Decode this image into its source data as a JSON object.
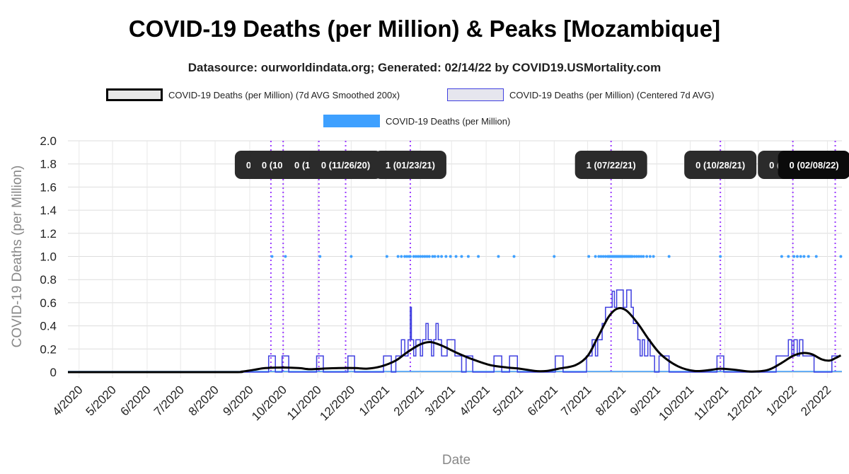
{
  "title": "COVID-19 Deaths (per Million) & Peaks [Mozambique]",
  "subtitle": "Datasource: ourworldindata.org; Generated: 02/14/22 by COVID19.USMortality.com",
  "legend": [
    {
      "label": "COVID-19 Deaths (per Million) (7d AVG Smoothed 200x)",
      "color": "#000000",
      "fill": "#e6e6e6"
    },
    {
      "label": "COVID-19 Deaths (per Million) (Centered 7d AVG)",
      "color": "#4040e0",
      "fill": "#e6e6ee"
    },
    {
      "label": "COVID-19 Deaths (per Million)",
      "color": "#3ea0ff",
      "fill": "#3ea0ff"
    }
  ],
  "chart_data": {
    "type": "line",
    "xlabel": "Date",
    "ylabel": "COVID-19 Deaths (per Million)",
    "ylim": [
      0,
      2.0
    ],
    "yticks": [
      "0",
      "0.2",
      "0.4",
      "0.6",
      "0.8",
      "1.0",
      "1.2",
      "1.4",
      "1.6",
      "1.8",
      "2.0"
    ],
    "xlim": [
      "2020-03-22",
      "2022-02-14"
    ],
    "xticks": [
      {
        "date": "2020-04-01",
        "label": "4/2020"
      },
      {
        "date": "2020-05-01",
        "label": "5/2020"
      },
      {
        "date": "2020-06-01",
        "label": "6/2020"
      },
      {
        "date": "2020-07-01",
        "label": "7/2020"
      },
      {
        "date": "2020-08-01",
        "label": "8/2020"
      },
      {
        "date": "2020-09-01",
        "label": "9/2020"
      },
      {
        "date": "2020-10-01",
        "label": "10/2020"
      },
      {
        "date": "2020-11-01",
        "label": "11/2020"
      },
      {
        "date": "2020-12-01",
        "label": "12/2020"
      },
      {
        "date": "2021-01-01",
        "label": "1/2021"
      },
      {
        "date": "2021-02-01",
        "label": "2/2021"
      },
      {
        "date": "2021-03-01",
        "label": "3/2021"
      },
      {
        "date": "2021-04-01",
        "label": "4/2021"
      },
      {
        "date": "2021-05-01",
        "label": "5/2021"
      },
      {
        "date": "2021-06-01",
        "label": "6/2021"
      },
      {
        "date": "2021-07-01",
        "label": "7/2021"
      },
      {
        "date": "2021-08-01",
        "label": "8/2021"
      },
      {
        "date": "2021-09-01",
        "label": "9/2021"
      },
      {
        "date": "2021-10-01",
        "label": "10/2021"
      },
      {
        "date": "2021-11-01",
        "label": "11/2021"
      },
      {
        "date": "2021-12-01",
        "label": "12/2021"
      },
      {
        "date": "2022-01-01",
        "label": "1/2022"
      },
      {
        "date": "2022-02-01",
        "label": "2/2022"
      }
    ],
    "series": [
      {
        "name": "COVID-19 Deaths (per Million) (7d AVG Smoothed 200x)",
        "points": [
          [
            "2020-03-22",
            0
          ],
          [
            "2020-08-10",
            0
          ],
          [
            "2020-08-25",
            0.005
          ],
          [
            "2020-09-05",
            0.02
          ],
          [
            "2020-09-15",
            0.035
          ],
          [
            "2020-10-01",
            0.04
          ],
          [
            "2020-10-15",
            0.035
          ],
          [
            "2020-10-25",
            0.025
          ],
          [
            "2020-11-05",
            0.03
          ],
          [
            "2020-11-20",
            0.035
          ],
          [
            "2020-12-05",
            0.035
          ],
          [
            "2020-12-15",
            0.03
          ],
          [
            "2020-12-28",
            0.05
          ],
          [
            "2021-01-10",
            0.1
          ],
          [
            "2021-01-20",
            0.17
          ],
          [
            "2021-02-01",
            0.24
          ],
          [
            "2021-02-10",
            0.26
          ],
          [
            "2021-02-20",
            0.23
          ],
          [
            "2021-03-05",
            0.17
          ],
          [
            "2021-03-20",
            0.11
          ],
          [
            "2021-04-05",
            0.06
          ],
          [
            "2021-04-20",
            0.04
          ],
          [
            "2021-05-01",
            0.03
          ],
          [
            "2021-05-15",
            0.01
          ],
          [
            "2021-05-25",
            0.01
          ],
          [
            "2021-06-05",
            0.03
          ],
          [
            "2021-06-20",
            0.06
          ],
          [
            "2021-07-01",
            0.14
          ],
          [
            "2021-07-10",
            0.3
          ],
          [
            "2021-07-20",
            0.48
          ],
          [
            "2021-07-28",
            0.55
          ],
          [
            "2021-08-05",
            0.53
          ],
          [
            "2021-08-15",
            0.42
          ],
          [
            "2021-08-25",
            0.28
          ],
          [
            "2021-09-05",
            0.15
          ],
          [
            "2021-09-20",
            0.05
          ],
          [
            "2021-10-05",
            0.01
          ],
          [
            "2021-10-20",
            0.02
          ],
          [
            "2021-10-28",
            0.03
          ],
          [
            "2021-11-10",
            0.02
          ],
          [
            "2021-11-25",
            0.005
          ],
          [
            "2021-12-10",
            0.02
          ],
          [
            "2021-12-22",
            0.08
          ],
          [
            "2022-01-01",
            0.14
          ],
          [
            "2022-01-10",
            0.165
          ],
          [
            "2022-01-18",
            0.155
          ],
          [
            "2022-01-27",
            0.11
          ],
          [
            "2022-02-03",
            0.1
          ],
          [
            "2022-02-08",
            0.12
          ],
          [
            "2022-02-13",
            0.145
          ]
        ]
      },
      {
        "name": "COVID-19 Deaths (per Million) (Centered 7d AVG)",
        "points": [
          [
            "2020-03-22",
            0
          ],
          [
            "2020-09-18",
            0
          ],
          [
            "2020-09-18",
            0.14
          ],
          [
            "2020-09-24",
            0.14
          ],
          [
            "2020-09-24",
            0
          ],
          [
            "2020-09-30",
            0
          ],
          [
            "2020-09-30",
            0.14
          ],
          [
            "2020-10-06",
            0.14
          ],
          [
            "2020-10-06",
            0
          ],
          [
            "2020-10-31",
            0
          ],
          [
            "2020-10-31",
            0.14
          ],
          [
            "2020-11-06",
            0.14
          ],
          [
            "2020-11-06",
            0
          ],
          [
            "2020-11-28",
            0
          ],
          [
            "2020-11-28",
            0.14
          ],
          [
            "2020-12-04",
            0.14
          ],
          [
            "2020-12-04",
            0
          ],
          [
            "2020-12-30",
            0
          ],
          [
            "2020-12-30",
            0.14
          ],
          [
            "2021-01-06",
            0.14
          ],
          [
            "2021-01-06",
            0
          ],
          [
            "2021-01-10",
            0
          ],
          [
            "2021-01-10",
            0.14
          ],
          [
            "2021-01-15",
            0.14
          ],
          [
            "2021-01-15",
            0.28
          ],
          [
            "2021-01-18",
            0.28
          ],
          [
            "2021-01-18",
            0.14
          ],
          [
            "2021-01-21",
            0.14
          ],
          [
            "2021-01-21",
            0.28
          ],
          [
            "2021-01-23",
            0.28
          ],
          [
            "2021-01-23",
            0.56
          ],
          [
            "2021-01-24",
            0.56
          ],
          [
            "2021-01-24",
            0.28
          ],
          [
            "2021-01-26",
            0.28
          ],
          [
            "2021-01-26",
            0.14
          ],
          [
            "2021-01-28",
            0.14
          ],
          [
            "2021-01-28",
            0.28
          ],
          [
            "2021-02-01",
            0.28
          ],
          [
            "2021-02-01",
            0.14
          ],
          [
            "2021-02-03",
            0.14
          ],
          [
            "2021-02-03",
            0.28
          ],
          [
            "2021-02-06",
            0.28
          ],
          [
            "2021-02-06",
            0.42
          ],
          [
            "2021-02-08",
            0.42
          ],
          [
            "2021-02-08",
            0.28
          ],
          [
            "2021-02-11",
            0.28
          ],
          [
            "2021-02-11",
            0.14
          ],
          [
            "2021-02-13",
            0.14
          ],
          [
            "2021-02-13",
            0.28
          ],
          [
            "2021-02-15",
            0.28
          ],
          [
            "2021-02-15",
            0.42
          ],
          [
            "2021-02-17",
            0.42
          ],
          [
            "2021-02-17",
            0.28
          ],
          [
            "2021-02-20",
            0.28
          ],
          [
            "2021-02-20",
            0.14
          ],
          [
            "2021-02-25",
            0.14
          ],
          [
            "2021-02-25",
            0.28
          ],
          [
            "2021-03-04",
            0.28
          ],
          [
            "2021-03-04",
            0.14
          ],
          [
            "2021-03-10",
            0.14
          ],
          [
            "2021-03-10",
            0
          ],
          [
            "2021-03-14",
            0
          ],
          [
            "2021-03-14",
            0.14
          ],
          [
            "2021-03-20",
            0.14
          ],
          [
            "2021-03-20",
            0
          ],
          [
            "2021-04-08",
            0
          ],
          [
            "2021-04-08",
            0.14
          ],
          [
            "2021-04-15",
            0.14
          ],
          [
            "2021-04-15",
            0
          ],
          [
            "2021-04-22",
            0
          ],
          [
            "2021-04-22",
            0.14
          ],
          [
            "2021-04-29",
            0.14
          ],
          [
            "2021-04-29",
            0
          ],
          [
            "2021-06-02",
            0
          ],
          [
            "2021-06-02",
            0.14
          ],
          [
            "2021-06-09",
            0.14
          ],
          [
            "2021-06-09",
            0
          ],
          [
            "2021-06-30",
            0
          ],
          [
            "2021-06-30",
            0.14
          ],
          [
            "2021-07-05",
            0.14
          ],
          [
            "2021-07-05",
            0.28
          ],
          [
            "2021-07-08",
            0.28
          ],
          [
            "2021-07-08",
            0.14
          ],
          [
            "2021-07-10",
            0.14
          ],
          [
            "2021-07-10",
            0.28
          ],
          [
            "2021-07-14",
            0.28
          ],
          [
            "2021-07-14",
            0.42
          ],
          [
            "2021-07-17",
            0.42
          ],
          [
            "2021-07-17",
            0.56
          ],
          [
            "2021-07-23",
            0.56
          ],
          [
            "2021-07-23",
            0.7
          ],
          [
            "2021-07-25",
            0.7
          ],
          [
            "2021-07-25",
            0.56
          ],
          [
            "2021-07-27",
            0.56
          ],
          [
            "2021-07-27",
            0.71
          ],
          [
            "2021-08-02",
            0.71
          ],
          [
            "2021-08-02",
            0.56
          ],
          [
            "2021-08-05",
            0.56
          ],
          [
            "2021-08-05",
            0.71
          ],
          [
            "2021-08-09",
            0.71
          ],
          [
            "2021-08-09",
            0.56
          ],
          [
            "2021-08-11",
            0.56
          ],
          [
            "2021-08-11",
            0.42
          ],
          [
            "2021-08-15",
            0.42
          ],
          [
            "2021-08-15",
            0.28
          ],
          [
            "2021-08-17",
            0.28
          ],
          [
            "2021-08-17",
            0.14
          ],
          [
            "2021-08-19",
            0.14
          ],
          [
            "2021-08-19",
            0.28
          ],
          [
            "2021-08-21",
            0.28
          ],
          [
            "2021-08-21",
            0.14
          ],
          [
            "2021-08-24",
            0.14
          ],
          [
            "2021-08-24",
            0.28
          ],
          [
            "2021-08-26",
            0.28
          ],
          [
            "2021-08-26",
            0.14
          ],
          [
            "2021-08-30",
            0.14
          ],
          [
            "2021-08-30",
            0
          ],
          [
            "2021-09-03",
            0
          ],
          [
            "2021-09-03",
            0.14
          ],
          [
            "2021-09-12",
            0.14
          ],
          [
            "2021-09-12",
            0
          ],
          [
            "2021-10-25",
            0
          ],
          [
            "2021-10-25",
            0.14
          ],
          [
            "2021-10-31",
            0.14
          ],
          [
            "2021-10-31",
            0
          ],
          [
            "2021-12-17",
            0
          ],
          [
            "2021-12-17",
            0.14
          ],
          [
            "2021-12-28",
            0.14
          ],
          [
            "2021-12-28",
            0.28
          ],
          [
            "2021-12-31",
            0.28
          ],
          [
            "2021-12-31",
            0.14
          ],
          [
            "2022-01-02",
            0.14
          ],
          [
            "2022-01-02",
            0.28
          ],
          [
            "2022-01-05",
            0.28
          ],
          [
            "2022-01-05",
            0.14
          ],
          [
            "2022-01-07",
            0.14
          ],
          [
            "2022-01-07",
            0.28
          ],
          [
            "2022-01-10",
            0.28
          ],
          [
            "2022-01-10",
            0.14
          ],
          [
            "2022-01-20",
            0.14
          ],
          [
            "2022-01-20",
            0
          ],
          [
            "2022-02-05",
            0
          ],
          [
            "2022-02-05",
            0.14
          ],
          [
            "2022-02-13",
            0.14
          ]
        ]
      },
      {
        "name": "COVID-19 Deaths (per Million)",
        "value": 1.0,
        "dates": [
          "2020-09-21",
          "2020-10-03",
          "2020-11-03",
          "2020-12-01",
          "2021-01-02",
          "2021-01-12",
          "2021-01-15",
          "2021-01-18",
          "2021-01-20",
          "2021-01-22",
          "2021-01-23",
          "2021-01-26",
          "2021-01-28",
          "2021-01-30",
          "2021-02-01",
          "2021-02-03",
          "2021-02-05",
          "2021-02-07",
          "2021-02-09",
          "2021-02-12",
          "2021-02-14",
          "2021-02-17",
          "2021-02-20",
          "2021-02-24",
          "2021-02-28",
          "2021-03-05",
          "2021-03-10",
          "2021-03-16",
          "2021-03-25",
          "2021-04-12",
          "2021-04-26",
          "2021-06-01",
          "2021-07-02",
          "2021-07-08",
          "2021-07-11",
          "2021-07-13",
          "2021-07-15",
          "2021-07-17",
          "2021-07-19",
          "2021-07-20",
          "2021-07-21",
          "2021-07-22",
          "2021-07-23",
          "2021-07-24",
          "2021-07-25",
          "2021-07-26",
          "2021-07-27",
          "2021-07-28",
          "2021-07-29",
          "2021-07-30",
          "2021-07-31",
          "2021-08-01",
          "2021-08-02",
          "2021-08-03",
          "2021-08-04",
          "2021-08-05",
          "2021-08-06",
          "2021-08-07",
          "2021-08-08",
          "2021-08-09",
          "2021-08-10",
          "2021-08-12",
          "2021-08-14",
          "2021-08-16",
          "2021-08-18",
          "2021-08-20",
          "2021-08-23",
          "2021-08-26",
          "2021-08-29",
          "2021-09-12",
          "2021-10-28",
          "2021-12-22",
          "2021-12-28",
          "2022-01-02",
          "2022-01-05",
          "2022-01-08",
          "2022-01-11",
          "2022-01-15",
          "2022-01-22",
          "2022-02-13"
        ]
      }
    ],
    "peaks": [
      {
        "date": "2020-09-20",
        "label": "0 (09/20/20)",
        "box_center": "2020-09-20"
      },
      {
        "date": "2020-10-01",
        "label": "0 (10/01/20)",
        "box_center": "2020-10-04"
      },
      {
        "date": "2020-11-02",
        "label": "0 (11/02/20)",
        "box_center": "2020-11-02"
      },
      {
        "date": "2020-11-26",
        "label": "0 (11/26/20)",
        "box_center": "2020-11-26"
      },
      {
        "date": "2021-01-23",
        "label": "1 (01/23/21)",
        "box_center": "2021-01-23"
      },
      {
        "date": "2021-07-22",
        "label": "1 (07/22/21)",
        "box_center": "2021-07-22"
      },
      {
        "date": "2021-10-28",
        "label": "0 (10/28/21)",
        "box_center": "2021-10-28"
      },
      {
        "date": "2022-01-01",
        "label": "0 (01/01/22)",
        "box_center": "2022-01-02"
      },
      {
        "date": "2022-02-08",
        "label": "0 (02/08/22)",
        "box_center": "2022-01-20"
      }
    ]
  }
}
